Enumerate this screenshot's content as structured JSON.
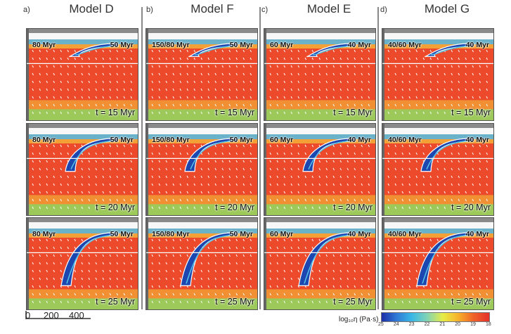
{
  "columns": [
    {
      "letter": "a)",
      "model": "Model D",
      "left_label": "80 Myr",
      "right_label": "50 Myr"
    },
    {
      "letter": "b)",
      "model": "Model F",
      "left_label": "150/80 Myr",
      "right_label": "50 Myr"
    },
    {
      "letter": "c)",
      "model": "Model E",
      "left_label": "60 Myr",
      "right_label": "40 Myr"
    },
    {
      "letter": "d)",
      "model": "Model G",
      "left_label": "40/60 Myr",
      "right_label": "40 Myr"
    }
  ],
  "rows": [
    {
      "time": "t = 15 Myr",
      "depth": 0.15
    },
    {
      "time": "t = 20 Myr",
      "depth": 0.45
    },
    {
      "time": "t = 25 Myr",
      "depth": 0.75
    }
  ],
  "scale_bar": {
    "ticks": [
      "0",
      "200",
      "400"
    ]
  },
  "colorbar": {
    "label": "log₁₀η (Pa·s)",
    "ticks": [
      "25",
      "24",
      "23",
      "22",
      "21",
      "20",
      "19",
      "18"
    ]
  },
  "colors": {
    "hot": "#ec4a2a",
    "warm": "#f3a036",
    "green": "#9dc95a",
    "blue": "#1d47b0",
    "cyan": "#54c3e6"
  }
}
